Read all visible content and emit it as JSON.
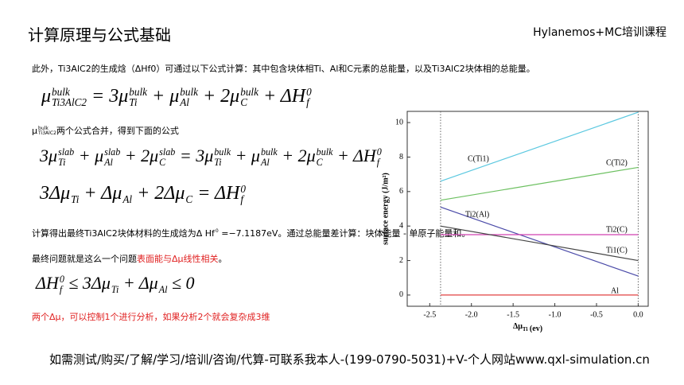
{
  "header": {
    "title": "计算原理与公式基础",
    "brand": "Hylanemos+MC培训课程"
  },
  "blocks": [
    {
      "kind": "text",
      "parts": [
        {
          "t": "此外，Ti3AlC2的生成焓（ΔHf0）可通过以下公式计算：其中包含块体相Ti、Al和C元素的总能量，以及Ti3AlC2块体相的总能量。"
        }
      ]
    },
    {
      "kind": "eq1",
      "parts": [
        {
          "t": "μ",
          "sub": "Ti3AlC2",
          "sup": "bulk"
        },
        {
          "t": " = 3μ",
          "sub": "Ti",
          "sup": "bulk"
        },
        {
          "t": " + μ",
          "sub": "Al",
          "sup": "bulk"
        },
        {
          "t": " + 2μ",
          "sub": "C",
          "sup": "bulk"
        },
        {
          "t": " + ΔH",
          "sub": "f",
          "sup": "0"
        }
      ]
    },
    {
      "kind": "text",
      "parts": [
        {
          "t": "μ",
          "sub": "Ti3AlC2",
          "sup": "bulk"
        },
        {
          "t": "两个公式合并，得到下面的公式"
        }
      ]
    },
    {
      "kind": "eq2",
      "parts": [
        {
          "t": "3μ",
          "sub": "Ti",
          "sup": "slab"
        },
        {
          "t": " + μ",
          "sub": "Al",
          "sup": "slab"
        },
        {
          "t": " + 2μ",
          "sub": "C",
          "sup": "slab"
        },
        {
          "t": " = 3μ",
          "sub": "Ti",
          "sup": "bulk"
        },
        {
          "t": " + μ",
          "sub": "Al",
          "sup": "bulk"
        },
        {
          "t": " + 2μ",
          "sub": "C",
          "sup": "bulk"
        },
        {
          "t": " + ΔH",
          "sub": "f",
          "sup": "0"
        }
      ]
    },
    {
      "kind": "eq3",
      "parts": [
        {
          "t": "3Δμ",
          "sub": "Ti"
        },
        {
          "t": " + Δμ",
          "sub": "Al"
        },
        {
          "t": " + 2Δμ",
          "sub": "C"
        },
        {
          "t": " = ΔH",
          "sub": "f",
          "sup": "0"
        }
      ]
    },
    {
      "kind": "text",
      "parts": [
        {
          "t": "计算得出最终Ti3AlC2块体材料的生成焓为Δ H"
        },
        {
          "t": "f",
          "sup": "0"
        },
        {
          "t": " =−7.1187eV。通过总能量差计算：块体能量 - 单原子能量和。"
        }
      ]
    },
    {
      "kind": "text",
      "parts": [
        {
          "t": "最终问题就是这么一个问题"
        },
        {
          "t": "表面能与Δμ线性相关",
          "color": "#e02020"
        },
        {
          "t": "。"
        }
      ]
    },
    {
      "kind": "eq4",
      "parts": [
        {
          "t": "ΔH",
          "sub": "f",
          "sup": "0"
        },
        {
          "t": " ≤ 3Δμ",
          "sub": "Ti"
        },
        {
          "t": " + Δμ",
          "sub": "Al"
        },
        {
          "t": " ≤ 0"
        }
      ]
    },
    {
      "kind": "red",
      "parts": [
        {
          "t": "两个Δμ，可以控制1个进行分析，如果分析2个就会复杂成3维",
          "color": "#e02020"
        }
      ]
    }
  ],
  "footer": "如需测试/购买/了解/学习/培训/咨询/代算-可联系我本人-(199-0790-5031)+V-个人网站www.qxl-simulation.cn",
  "chart_data": {
    "type": "line",
    "x_label": [
      {
        "t": "Δμ",
        "sub": "Ti"
      },
      {
        "t": " (ev)"
      }
    ],
    "y_label": "surface energy (J/m²)",
    "x": [
      -2.37,
      0
    ],
    "vlines": [
      -2.37,
      0
    ],
    "xlim": [
      -2.77,
      0.12
    ],
    "ylim": [
      -0.65,
      10.65
    ],
    "xticks": [
      {
        "value": -2.5,
        "label": "-2.5"
      },
      {
        "value": -2,
        "label": "-2.0"
      },
      {
        "value": -1.5,
        "label": "-1.5"
      },
      {
        "value": -1,
        "label": "-1.0"
      },
      {
        "value": -0.5,
        "label": "-0.5"
      },
      {
        "value": 0,
        "label": "0.0"
      }
    ],
    "yticks": [
      0,
      2,
      4,
      6,
      8,
      10
    ],
    "series": [
      {
        "name": "C(Ti1)",
        "color": "#5bc8e0",
        "values": [
          6.6,
          10.6
        ]
      },
      {
        "name": "C(Ti2)",
        "color": "#6cc060",
        "values": [
          5.5,
          7.4
        ]
      },
      {
        "name": "Ti2(Al)",
        "color": "#4a4aa8",
        "values": [
          5.1,
          1.1
        ]
      },
      {
        "name": "Ti2(C)",
        "color": "#d040b0",
        "values": [
          3.5,
          3.5
        ]
      },
      {
        "name": "Ti1(C)",
        "color": "#444444",
        "values": [
          4.0,
          2.0
        ]
      },
      {
        "name": "Al",
        "color": "#e04040",
        "values": [
          0,
          0
        ]
      }
    ]
  }
}
